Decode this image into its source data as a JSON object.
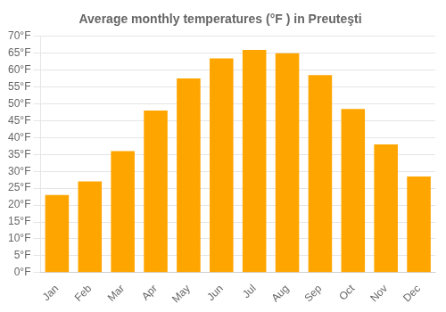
{
  "chart_data": {
    "type": "bar",
    "title": "Average monthly temperatures (°F ) in Preuteşti",
    "categories": [
      "Jan",
      "Feb",
      "Mar",
      "Apr",
      "May",
      "Jun",
      "Jul",
      "Aug",
      "Sep",
      "Oct",
      "Nov",
      "Dec"
    ],
    "values": [
      23.0,
      27.0,
      36.0,
      48.0,
      57.5,
      63.5,
      66.0,
      65.0,
      58.5,
      48.5,
      38.0,
      28.5
    ],
    "color": "#FFA500",
    "ylim": [
      0,
      70
    ],
    "yticks": [
      {
        "value": 0,
        "label": "0°F"
      },
      {
        "value": 5,
        "label": "5°F"
      },
      {
        "value": 10,
        "label": "10°F"
      },
      {
        "value": 15,
        "label": "15°F"
      },
      {
        "value": 20,
        "label": "20°F"
      },
      {
        "value": 25,
        "label": "25°F"
      },
      {
        "value": 30,
        "label": "30°F"
      },
      {
        "value": 35,
        "label": "35°F"
      },
      {
        "value": 40,
        "label": "40°F"
      },
      {
        "value": 45,
        "label": "45°F"
      },
      {
        "value": 50,
        "label": "50°F"
      },
      {
        "value": 55,
        "label": "55°F"
      },
      {
        "value": 60,
        "label": "60°F"
      },
      {
        "value": 65,
        "label": "65°F"
      },
      {
        "value": 70,
        "label": "70°F"
      }
    ],
    "grid": true
  }
}
